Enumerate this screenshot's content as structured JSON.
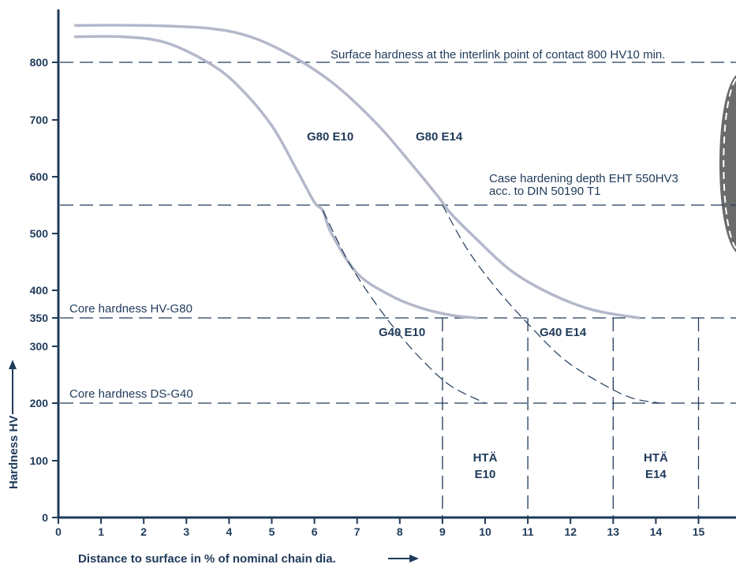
{
  "chart_data": {
    "type": "line",
    "xlabel": "Distance to surface in % of nominal chain dia.",
    "ylabel": "Hardness HV",
    "xlim": [
      0,
      16
    ],
    "ylim": [
      0,
      900
    ],
    "x_ticks": [
      0,
      1,
      2,
      3,
      4,
      5,
      6,
      7,
      8,
      9,
      10,
      11,
      12,
      13,
      14,
      15
    ],
    "y_ticks": [
      0,
      100,
      200,
      300,
      350,
      400,
      500,
      600,
      700,
      800
    ],
    "series": [
      {
        "name": "G80 E10",
        "style": "solid",
        "x": [
          0.4,
          1.5,
          2.5,
          3.5,
          4.2,
          5.0,
          5.6,
          6.0,
          6.2,
          6.4,
          7.0,
          7.8,
          8.5,
          9.2,
          9.8
        ],
        "y": [
          845,
          845,
          835,
          800,
          760,
          690,
          610,
          555,
          540,
          500,
          430,
          390,
          368,
          355,
          350
        ]
      },
      {
        "name": "G80 E14",
        "style": "solid",
        "x": [
          0.4,
          2.0,
          3.5,
          4.5,
          5.5,
          6.5,
          7.5,
          8.3,
          8.9,
          9.2,
          9.8,
          10.6,
          11.5,
          12.5,
          13.6
        ],
        "y": [
          865,
          865,
          860,
          845,
          810,
          760,
          690,
          620,
          565,
          535,
          490,
          435,
          395,
          365,
          350
        ]
      },
      {
        "name": "G40 E10",
        "style": "dashed",
        "x": [
          6.2,
          6.8,
          7.4,
          8.0,
          8.6,
          9.2,
          10.0
        ],
        "y": [
          540,
          450,
          380,
          320,
          270,
          230,
          200
        ]
      },
      {
        "name": "G40 E14",
        "style": "dashed",
        "x": [
          9.0,
          9.6,
          10.3,
          11.0,
          11.8,
          12.6,
          13.4,
          14.1
        ],
        "y": [
          550,
          470,
          400,
          340,
          280,
          240,
          210,
          200
        ]
      }
    ],
    "reference_lines": [
      {
        "y": 800,
        "label": "Surface hardness at the interlink point of contact 800 HV10 min."
      },
      {
        "y": 550,
        "label": "Case hardening depth EHT 550HV3",
        "label2": "acc. to DIN 50190 T1"
      },
      {
        "y": 350,
        "label": "Core hardness HV-G80"
      },
      {
        "y": 200,
        "label": "Core hardness DS-G40"
      }
    ],
    "vertical_lines": [
      {
        "x": 9,
        "y_top": 350
      },
      {
        "x": 11,
        "y_top": 350
      },
      {
        "x": 13,
        "y_top": 350
      },
      {
        "x": 15,
        "y_top": 350
      }
    ],
    "zones": [
      {
        "x0": 9,
        "x1": 11,
        "label_line1": "HTÄ",
        "label_line2": "E10"
      },
      {
        "x0": 13,
        "x1": 15,
        "label_line1": "HTÄ",
        "label_line2": "E14"
      }
    ],
    "colors": {
      "axis": "#1f3a5a",
      "text": "#1f3a5a",
      "solid_curve": "#b4b8ca",
      "dashed": "#1f3a5a",
      "chain_link_fill": "#6b6b6b"
    }
  }
}
